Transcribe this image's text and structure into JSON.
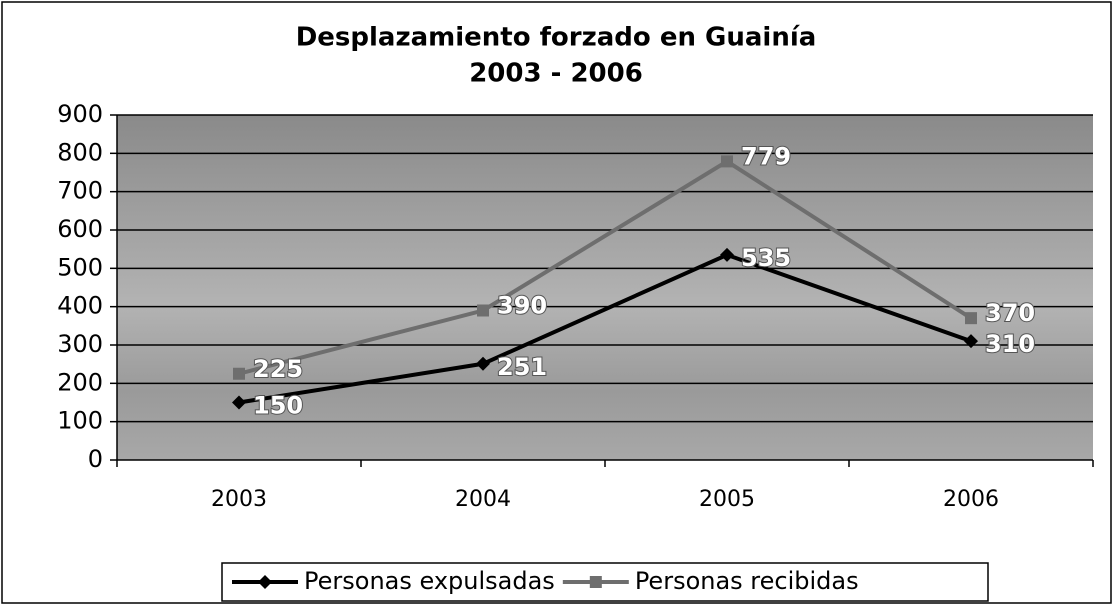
{
  "chart_data": {
    "type": "line",
    "title": "Desplazamiento forzado en Guainía",
    "subtitle": "2003 - 2006",
    "categories": [
      "2003",
      "2004",
      "2005",
      "2006"
    ],
    "series": [
      {
        "name": "Personas expulsadas",
        "color": "#000000",
        "marker": "diamond",
        "values": [
          150,
          251,
          535,
          310
        ]
      },
      {
        "name": "Personas recibidas",
        "color": "#6e6e6e",
        "marker": "square",
        "values": [
          225,
          390,
          779,
          370
        ]
      }
    ],
    "ylim": [
      0,
      900
    ],
    "yticks": [
      0,
      100,
      200,
      300,
      400,
      500,
      600,
      700,
      800,
      900
    ],
    "grid": true,
    "legend": "bottom"
  }
}
